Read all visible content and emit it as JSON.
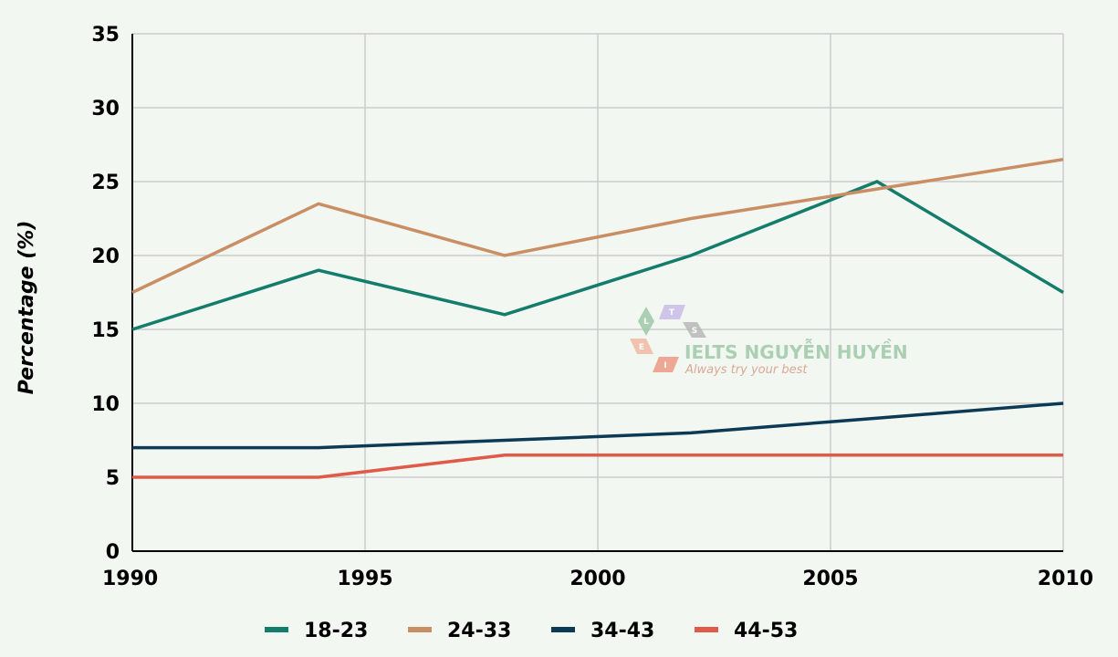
{
  "chart_data": {
    "type": "line",
    "title": "",
    "xlabel": "",
    "ylabel": "Percentage (%)",
    "xlim": [
      1990,
      2010
    ],
    "ylim": [
      0,
      35
    ],
    "x_ticks": [
      "1990",
      "1995",
      "2000",
      "2005",
      "2010"
    ],
    "y_ticks": [
      "0",
      "5",
      "10",
      "15",
      "20",
      "25",
      "30",
      "35"
    ],
    "grid": true,
    "legend_position": "bottom",
    "series": [
      {
        "name": "18-23",
        "color": "#137c6b",
        "points": [
          [
            1990,
            15
          ],
          [
            1994,
            19
          ],
          [
            1998,
            16
          ],
          [
            2002,
            20
          ],
          [
            2006,
            25
          ],
          [
            2010,
            17.5
          ]
        ]
      },
      {
        "name": "24-33",
        "color": "#c98e64",
        "points": [
          [
            1990,
            17.5
          ],
          [
            1994,
            23.5
          ],
          [
            1998,
            20
          ],
          [
            2002,
            22.5
          ],
          [
            2006,
            24.5
          ],
          [
            2010,
            26.5
          ]
        ]
      },
      {
        "name": "34-43",
        "color": "#0c3a55",
        "points": [
          [
            1990,
            7
          ],
          [
            1994,
            7
          ],
          [
            1998,
            7.5
          ],
          [
            2002,
            8
          ],
          [
            2006,
            9
          ],
          [
            2010,
            10
          ]
        ]
      },
      {
        "name": "44-53",
        "color": "#df5a48",
        "points": [
          [
            1990,
            5
          ],
          [
            1994,
            5
          ],
          [
            1998,
            6.5
          ],
          [
            2002,
            6.5
          ],
          [
            2006,
            6.5
          ],
          [
            2010,
            6.5
          ]
        ]
      }
    ]
  },
  "watermark": {
    "title": "IELTS NGUYỄN HUYỀN",
    "subtitle": "Always try your best",
    "letters": [
      "L",
      "T",
      "S",
      "E",
      "I"
    ]
  }
}
